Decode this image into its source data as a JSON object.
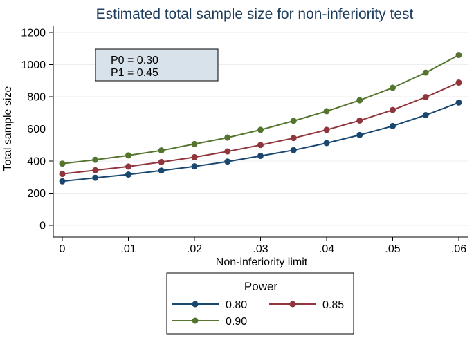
{
  "chart_data": {
    "type": "line",
    "title": "Estimated total sample size for non-inferiority test",
    "xlabel": "Non-inferiority limit",
    "ylabel": "Total sample size",
    "xlim": [
      0,
      0.06
    ],
    "ylim": [
      0,
      1200
    ],
    "x_ticks": [
      {
        "value": 0,
        "label": "0"
      },
      {
        "value": 0.01,
        "label": ".01"
      },
      {
        "value": 0.02,
        "label": ".02"
      },
      {
        "value": 0.03,
        "label": ".03"
      },
      {
        "value": 0.04,
        "label": ".04"
      },
      {
        "value": 0.05,
        "label": ".05"
      },
      {
        "value": 0.06,
        "label": ".06"
      }
    ],
    "y_ticks": [
      {
        "value": 0,
        "label": "0"
      },
      {
        "value": 200,
        "label": "200"
      },
      {
        "value": 400,
        "label": "400"
      },
      {
        "value": 600,
        "label": "600"
      },
      {
        "value": 800,
        "label": "800"
      },
      {
        "value": 1000,
        "label": "1000"
      },
      {
        "value": 1200,
        "label": "1200"
      }
    ],
    "grid": true,
    "x": [
      0,
      0.005,
      0.01,
      0.015,
      0.02,
      0.025,
      0.03,
      0.035,
      0.04,
      0.045,
      0.05,
      0.055,
      0.06
    ],
    "series": [
      {
        "name": "0.80",
        "color": "#1a476f",
        "values": [
          274,
          296,
          316,
          341,
          367,
          397,
          432,
          468,
          512,
          562,
          618,
          686,
          764
        ]
      },
      {
        "name": "0.85",
        "color": "#90353b",
        "values": [
          320,
          343,
          366,
          394,
          424,
          460,
          500,
          543,
          594,
          652,
          718,
          798,
          888
        ]
      },
      {
        "name": "0.90",
        "color": "#55752f",
        "values": [
          384,
          408,
          435,
          466,
          506,
          546,
          594,
          650,
          710,
          778,
          856,
          950,
          1060
        ]
      }
    ],
    "annotation": {
      "lines": [
        "P0 = 0.30",
        "P1 = 0.45"
      ],
      "placement": "top-left"
    },
    "legend": {
      "title": "Power",
      "placement": "bottom"
    }
  },
  "colors": {
    "annotation_fill": "#d7e2eb",
    "title_color": "#1e3d5c",
    "grid_color": "#eaeef1",
    "axis_color": "#000000"
  }
}
